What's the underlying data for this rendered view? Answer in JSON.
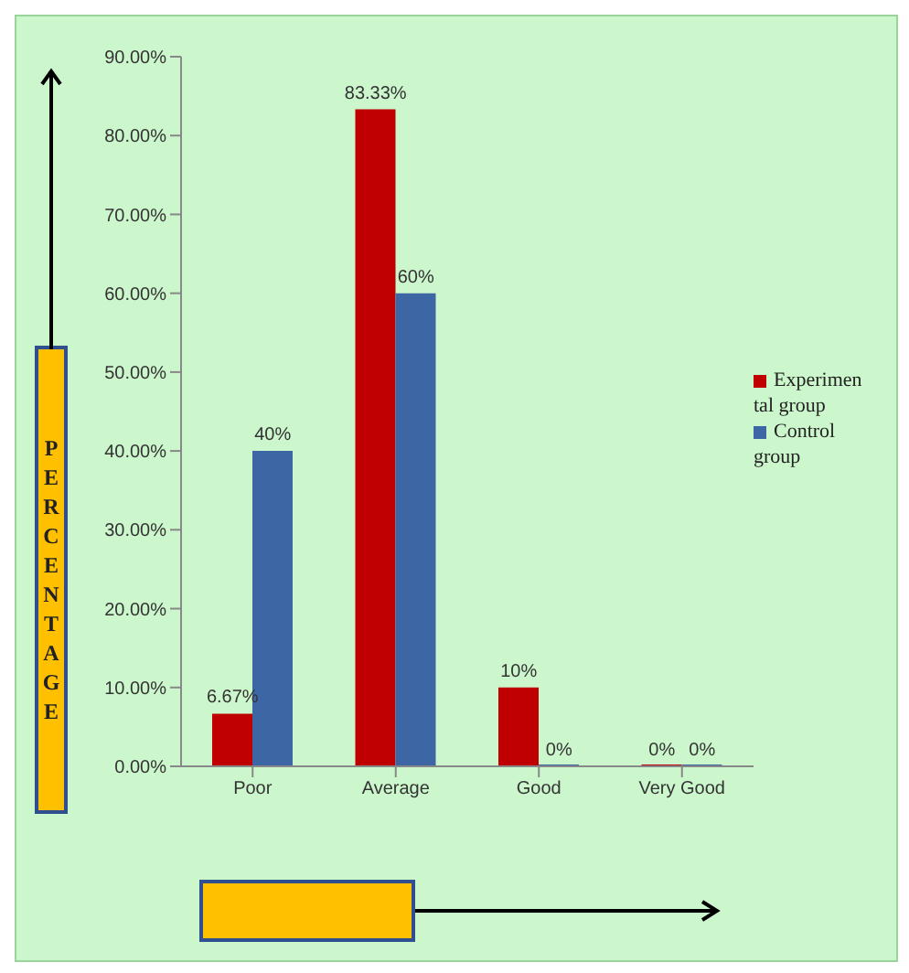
{
  "chart_data": {
    "type": "bar",
    "ylabel": "PERCENTAGE",
    "categories": [
      "Poor",
      "Average",
      "Good",
      "Very Good"
    ],
    "series": [
      {
        "name": "Experimental group",
        "color": "#c00000",
        "values": [
          6.67,
          83.33,
          10,
          0
        ],
        "value_labels": [
          "6.67%",
          "83.33%",
          "10%",
          "0%"
        ]
      },
      {
        "name": "Control group",
        "color": "#3c66a4",
        "values": [
          40,
          60,
          0,
          0
        ],
        "value_labels": [
          "40%",
          "60%",
          "0%",
          "0%"
        ]
      }
    ],
    "ylim": [
      0,
      90
    ],
    "yticks": [
      {
        "value": 0,
        "label": "0.00%"
      },
      {
        "value": 10,
        "label": "10.00%"
      },
      {
        "value": 20,
        "label": "20.00%"
      },
      {
        "value": 30,
        "label": "30.00%"
      },
      {
        "value": 40,
        "label": "40.00%"
      },
      {
        "value": 50,
        "label": "50.00%"
      },
      {
        "value": 60,
        "label": "60.00%"
      },
      {
        "value": 70,
        "label": "70.00%"
      },
      {
        "value": 80,
        "label": "80.00%"
      },
      {
        "value": 90,
        "label": "90.00%"
      }
    ],
    "grid": false,
    "legend": "right"
  }
}
